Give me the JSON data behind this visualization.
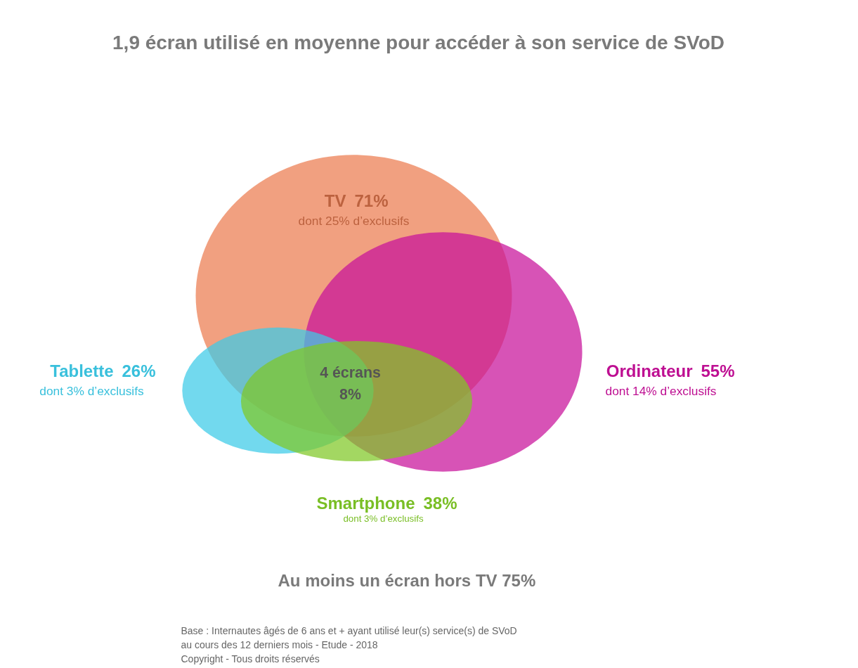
{
  "chart_data": {
    "type": "other",
    "title": "1,9 écran utilisé en moyenne pour accéder à son service de SVoD",
    "categories": [
      "TV",
      "Tablette",
      "Ordinateur",
      "Smartphone"
    ],
    "values": [
      71,
      26,
      55,
      38
    ],
    "value_labels": [
      "71%",
      "26%",
      "55%",
      "38%"
    ],
    "colors": [
      "#ec7b4f",
      "#3ccbe8",
      "#c8109a",
      "#80c826"
    ],
    "annotations": [
      "dont 25% d’exclusifs",
      "dont 3% d’exclusifs",
      "dont 14% d’exclusifs",
      "dont 3% d’exclusifs",
      "4 écrans\n8%",
      "Au moins un écran hors TV 75%",
      "Base : Internautes âgés de 6 ans et + ayant utilisé leur(s) service(s) de SVoD\nau cours des 12 derniers mois - Etude - 2018\nCopyright - Tous droits réservés"
    ]
  }
}
